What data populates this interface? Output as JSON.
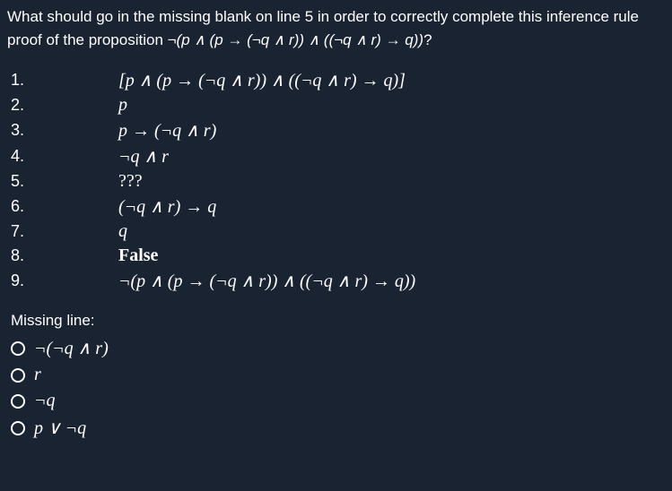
{
  "colors": {
    "background": "#1a2332",
    "text": "#ffffff",
    "radio_border": "#ffffff"
  },
  "typography": {
    "question_font": "Arial, sans-serif",
    "question_fontsize": 17,
    "math_font": "Times New Roman, serif",
    "math_fontsize": 20,
    "line_number_font": "Arial, sans-serif",
    "line_number_fontsize": 18
  },
  "question": {
    "prefix": "What should go in the missing blank on line 5 in order to correctly complete this inference rule proof of the proposition ",
    "proposition": "¬(p ∧ (p → (¬q ∧ r)) ∧ ((¬q ∧ r) → q))",
    "suffix": "?"
  },
  "proof_lines": [
    {
      "num": "1.",
      "content": "[p ∧ (p → (¬q ∧ r)) ∧ ((¬q ∧ r) → q)]"
    },
    {
      "num": "2.",
      "content": "p"
    },
    {
      "num": "3.",
      "content": "p → (¬q ∧ r)"
    },
    {
      "num": "4.",
      "content": "¬q ∧ r"
    },
    {
      "num": "5.",
      "content": "???"
    },
    {
      "num": "6.",
      "content": "(¬q ∧ r) → q"
    },
    {
      "num": "7.",
      "content": "q"
    },
    {
      "num": "8.",
      "content": "False"
    },
    {
      "num": "9.",
      "content": "¬(p ∧ (p → (¬q ∧ r)) ∧ ((¬q ∧ r) → q))"
    }
  ],
  "missing_label": "Missing line:",
  "options": [
    {
      "id": "opt1",
      "text": "¬(¬q ∧ r)"
    },
    {
      "id": "opt2",
      "text": "r"
    },
    {
      "id": "opt3",
      "text": "¬q"
    },
    {
      "id": "opt4",
      "text": "p ∨ ¬q"
    }
  ]
}
